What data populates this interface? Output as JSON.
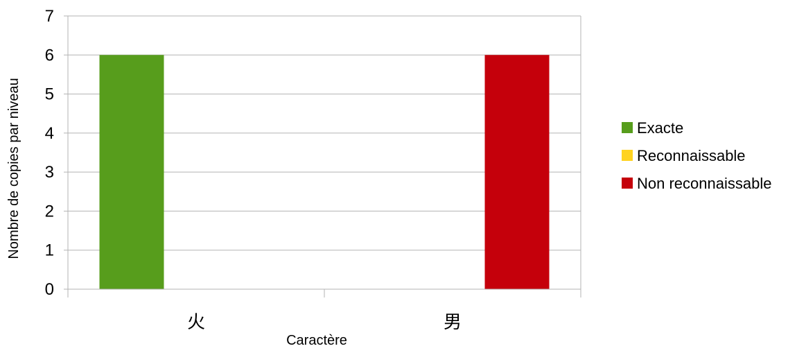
{
  "chart_data": {
    "type": "bar",
    "categories": [
      "火",
      "男"
    ],
    "series": [
      {
        "name": "Exacte",
        "values": [
          6,
          0
        ],
        "color": "#579d1c"
      },
      {
        "name": "Reconnaissable",
        "values": [
          0,
          0
        ],
        "color": "#ffd320"
      },
      {
        "name": "Non reconnaissable",
        "values": [
          0,
          6
        ],
        "color": "#c5000b"
      }
    ],
    "xlabel": "Caractère",
    "ylabel": "Nombre de copies par niveau",
    "ylim": [
      0,
      7
    ],
    "yticks": [
      "0",
      "1",
      "2",
      "3",
      "4",
      "5",
      "6",
      "7"
    ],
    "grid": true,
    "legend": "right"
  }
}
